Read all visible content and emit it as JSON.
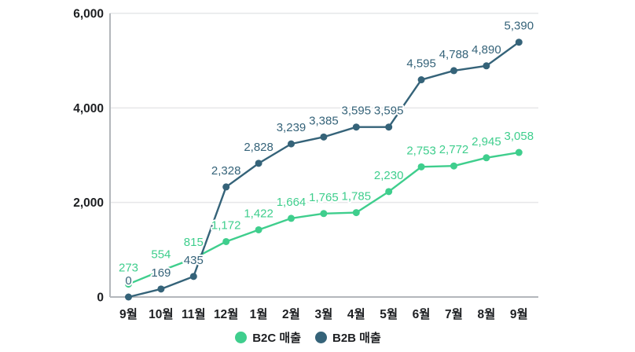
{
  "chart_data": {
    "type": "line",
    "title": "",
    "xlabel": "",
    "ylabel": "",
    "categories": [
      "9월",
      "10월",
      "11월",
      "12월",
      "1월",
      "2월",
      "3월",
      "4월",
      "5월",
      "6월",
      "7월",
      "8월",
      "9월"
    ],
    "series": [
      {
        "name": "B2C 매출",
        "color": "#3FCE8D",
        "values": [
          273,
          554,
          815,
          1172,
          1422,
          1664,
          1765,
          1785,
          2230,
          2753,
          2772,
          2945,
          3058
        ],
        "value_labels": [
          "273",
          "554",
          "815",
          "1,172",
          "1,422",
          "1,664",
          "1,765",
          "1,785",
          "2,230",
          "2,753",
          "2,772",
          "2,945",
          "3,058"
        ]
      },
      {
        "name": "B2B 매출",
        "color": "#356379",
        "values": [
          0,
          169,
          435,
          2328,
          2828,
          3239,
          3385,
          3595,
          3595,
          4595,
          4788,
          4890,
          5390
        ],
        "value_labels": [
          "0",
          "169",
          "435",
          "2,328",
          "2,828",
          "3,239",
          "3,385",
          "3,595",
          "3,595",
          "4,595",
          "4,788",
          "4,890",
          "5,390"
        ]
      }
    ],
    "ylim": [
      0,
      6000
    ],
    "yticks": [
      0,
      2000,
      4000,
      6000
    ],
    "ytick_labels": [
      "0",
      "2,000",
      "4,000",
      "6,000"
    ],
    "grid": true,
    "value_labels_shown": true,
    "legend_position": "bottom",
    "colors": {
      "axis_line": "#b3b7bb",
      "grid_line": "#e6e7e9",
      "tick_text": "#1d1f22",
      "background": "#ffffff"
    }
  }
}
